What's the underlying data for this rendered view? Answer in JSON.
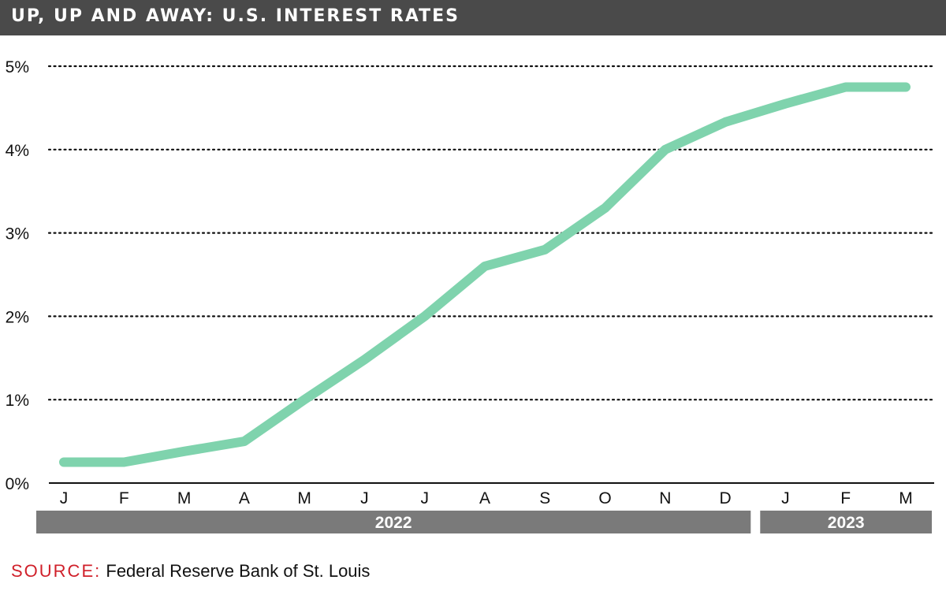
{
  "header": {
    "title": "UP, UP AND AWAY: U.S. INTEREST RATES"
  },
  "footer": {
    "source_label": "SOURCE:",
    "source_text": "Federal Reserve Bank of St. Louis"
  },
  "colors": {
    "line": "#7fd3ad",
    "title_bg": "#4a4a4a",
    "year_band": "#7a7a7a",
    "source_label": "#d0202a"
  },
  "chart_data": {
    "type": "line",
    "title": "UP, UP AND AWAY: U.S. INTEREST RATES",
    "xlabel": "",
    "ylabel": "",
    "categories": [
      "J",
      "F",
      "M",
      "A",
      "M",
      "J",
      "J",
      "A",
      "S",
      "O",
      "N",
      "D",
      "J",
      "F",
      "M"
    ],
    "x_groups": [
      {
        "label": "2022",
        "span": 12
      },
      {
        "label": "2023",
        "span": 3
      }
    ],
    "series": [
      {
        "values": [
          0.25,
          0.25,
          0.38,
          0.5,
          1.0,
          1.48,
          2.0,
          2.6,
          2.8,
          3.3,
          4.0,
          4.33,
          4.55,
          4.75,
          4.75
        ]
      }
    ],
    "y_ticks": [
      0,
      1,
      2,
      3,
      4,
      5
    ],
    "y_tick_labels": [
      "0%",
      "1%",
      "2%",
      "3%",
      "4%",
      "5%"
    ],
    "ylim": [
      0,
      5
    ],
    "grid": "horizontal-dotted",
    "legend": "none"
  }
}
